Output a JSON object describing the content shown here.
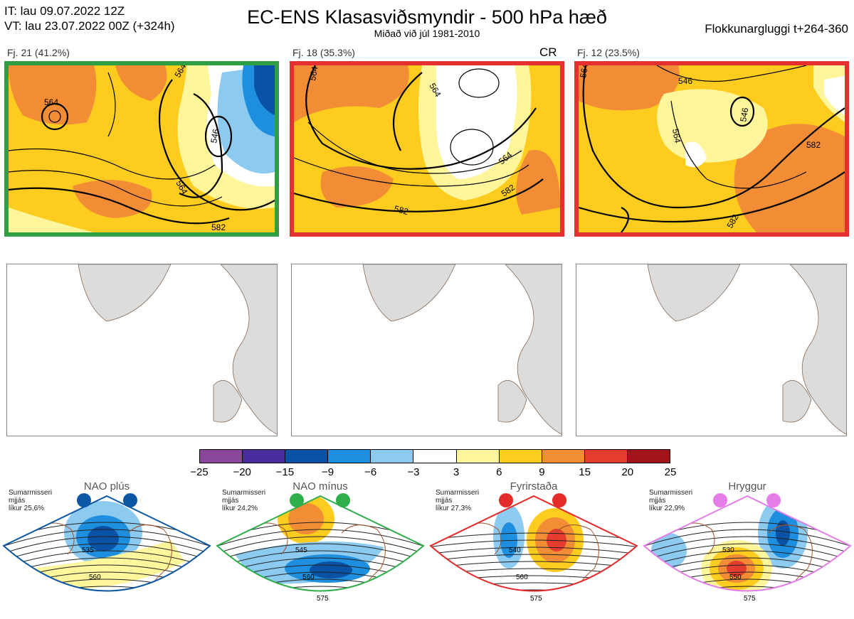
{
  "header": {
    "it_line": "IT: lau 09.07.2022 12Z",
    "vt_line": "VT: lau 23.07.2022 00Z  (+324h)",
    "title": "EC-ENS Klasasviðsmyndir - 500 hPa hæð",
    "subtitle": "Miðað við júl 1981-2010",
    "window": "Flokkunargluggi t+264-360"
  },
  "clusters": [
    {
      "label": "Fj. 21 (41.2%)",
      "frame_color": "#2ea043",
      "tag": "",
      "contour_labels": [
        "564",
        "564",
        "546",
        "564",
        "582"
      ]
    },
    {
      "label": "Fj. 18 (35.3%)",
      "frame_color": "#e53030",
      "tag": "CR",
      "contour_labels": [
        "564",
        "564",
        "564",
        "582",
        "582"
      ]
    },
    {
      "label": "Fj. 12 (23.5%)",
      "frame_color": "#e53030",
      "tag": "",
      "contour_labels": [
        "564",
        "546",
        "546",
        "564",
        "582",
        "582"
      ]
    }
  ],
  "colorbar": {
    "ticks": [
      "−25",
      "−20",
      "−15",
      "−9",
      "−6",
      "−3",
      "3",
      "6",
      "9",
      "15",
      "20",
      "25"
    ],
    "colors": [
      "#8b479b",
      "#4a2d9c",
      "#0a52a5",
      "#1d8fde",
      "#8ccaf0",
      "#ffffff",
      "#fff59a",
      "#fecb1f",
      "#f28c35",
      "#e43c2f",
      "#a3141a"
    ]
  },
  "regimes": [
    {
      "name": "NAO plús",
      "note": [
        "Sumarmisseri",
        "mjjás",
        "líkur 25,6%"
      ],
      "color": "#0b57a4",
      "contour_labels": [
        "535",
        "560"
      ]
    },
    {
      "name": "NAO mínus",
      "note": [
        "Sumarmisseri",
        "mjjás",
        "líkur 24,2%"
      ],
      "color": "#2fae4a",
      "contour_labels": [
        "545",
        "560",
        "575"
      ]
    },
    {
      "name": "Fyrirstaða",
      "note": [
        "Sumarmisseri",
        "mjjás",
        "líkur 27,3%"
      ],
      "color": "#e52a2a",
      "contour_labels": [
        "540",
        "560",
        "575"
      ]
    },
    {
      "name": "Hryggur",
      "note": [
        "Sumarmisseri",
        "mjjás",
        "líkur 22,9%"
      ],
      "color": "#e57de8",
      "contour_labels": [
        "530",
        "550",
        "575"
      ]
    }
  ]
}
